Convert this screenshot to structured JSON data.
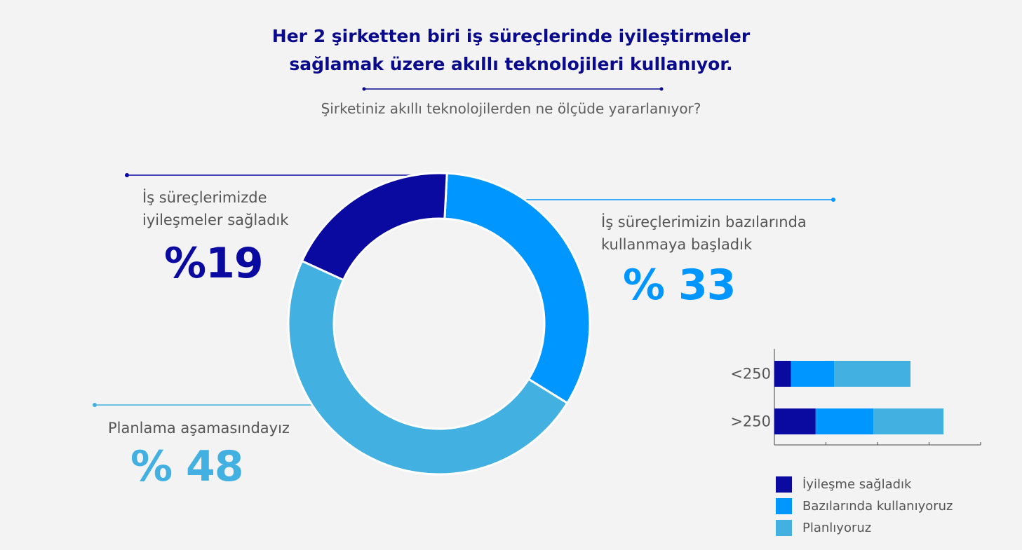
{
  "title": {
    "line1": "Her 2 şirketten biri iş süreçlerinde iyileştirmeler",
    "line2": "sağlamak üzere akıllı teknolojileri kullanıyor."
  },
  "subtitle": "Şirketiniz akıllı teknolojilerden ne ölçüde yararlanıyor?",
  "colors": {
    "dark_blue": "#0a0aa0",
    "bright_blue": "#0096ff",
    "light_blue": "#42b0e0",
    "title": "#0a0a8c"
  },
  "segments": [
    {
      "label_line1": "İş süreçlerimizde",
      "label_line2": "iyileşmeler sağladık",
      "value_text": "%19"
    },
    {
      "label_line1": "İş süreçlerimizin bazılarında",
      "label_line2": "kullanmaya başladık",
      "value_text": "% 33"
    },
    {
      "label_line1": "Planlama aşamasındayız",
      "value_text": "% 48"
    }
  ],
  "chart_data": [
    {
      "type": "pie",
      "categories": [
        "İş süreçlerimizde iyileşmeler sağladık",
        "İş süreçlerimizin bazılarında kullanmaya başladık",
        "Planlama aşamasındayız"
      ],
      "values": [
        19,
        33,
        48
      ],
      "colors": [
        "#0a0aa0",
        "#0096ff",
        "#42b0e0"
      ],
      "title": "",
      "legend": "none"
    },
    {
      "type": "bar",
      "orientation": "horizontal",
      "stacked": true,
      "categories": [
        "<250",
        ">250"
      ],
      "series": [
        {
          "name": "İyileşme sağladık",
          "values": [
            8,
            20
          ],
          "color": "#0a0aa0"
        },
        {
          "name": "Bazılarında kullanıyoruz",
          "values": [
            21,
            28
          ],
          "color": "#0096ff"
        },
        {
          "name": "Planlıyoruz",
          "values": [
            37,
            34
          ],
          "color": "#42b0e0"
        }
      ],
      "xlim": [
        0,
        100
      ],
      "legend": "bottom"
    }
  ]
}
